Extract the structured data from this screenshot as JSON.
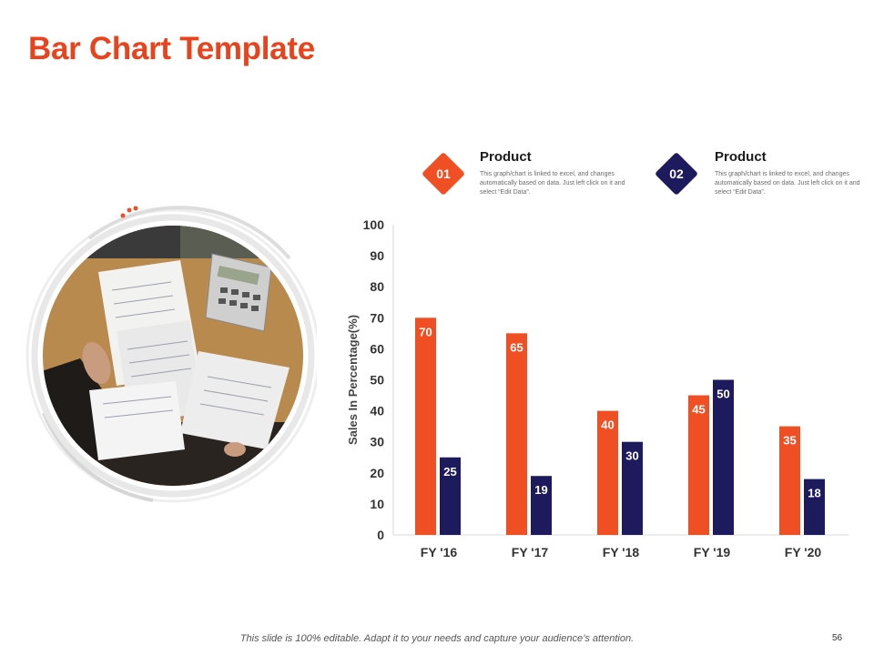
{
  "slide": {
    "title": "Bar Chart Template",
    "footer": "This slide is 100% editable. Adapt it to your needs and capture your audience’s attention.",
    "page_number": "56"
  },
  "legend": [
    {
      "number": "01",
      "title": "Product",
      "description": "This graph/chart is linked to excel, and changes automatically based on data. Just left click on it and select “Edit Data”.",
      "color": "#f04e23"
    },
    {
      "number": "02",
      "title": "Product",
      "description": "This graph/chart is linked to excel, and changes automatically based on data. Just left click on it and select “Edit Data”.",
      "color": "#1e1a5e"
    }
  ],
  "image": {
    "icon": "office-desk-photo"
  },
  "chart_data": {
    "type": "bar",
    "categories": [
      "FY '16",
      "FY '17",
      "FY '18",
      "FY '19",
      "FY '20"
    ],
    "series": [
      {
        "values": [
          70,
          65,
          40,
          45,
          35
        ],
        "color": "#f04e23"
      },
      {
        "values": [
          25,
          19,
          30,
          50,
          18
        ],
        "color": "#1e1a5e"
      }
    ],
    "ylabel": "Sales In Percentage(%)",
    "xlabel": "",
    "ylim": [
      0,
      100
    ],
    "yticks": [
      0,
      10,
      20,
      30,
      40,
      50,
      60,
      70,
      80,
      90,
      100
    ],
    "grid": false
  }
}
